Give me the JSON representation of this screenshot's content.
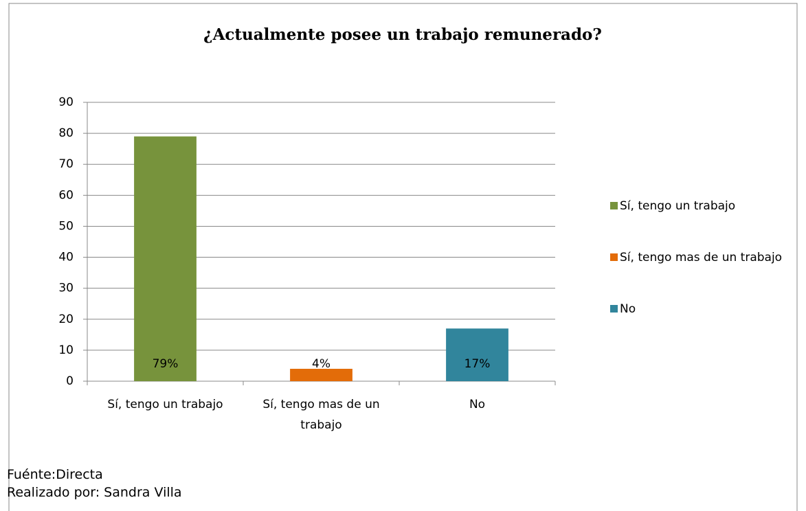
{
  "chart_data": {
    "type": "bar",
    "title": "¿Actualmente posee un trabajo remunerado?",
    "categories": [
      "Sí, tengo un trabajo",
      "Sí, tengo mas de un trabajo",
      "No"
    ],
    "values": [
      79,
      4,
      17
    ],
    "value_labels": [
      "79%",
      "4%",
      "17%"
    ],
    "colors": [
      "#77933c",
      "#e36c09",
      "#31859c"
    ],
    "ylim": [
      0,
      90
    ],
    "yticks": [
      0,
      10,
      20,
      30,
      40,
      50,
      60,
      70,
      80,
      90
    ],
    "grid": true,
    "legend": "right",
    "source": "Fuénte:Directa",
    "credit": "Realizado por: Sandra Villa"
  }
}
